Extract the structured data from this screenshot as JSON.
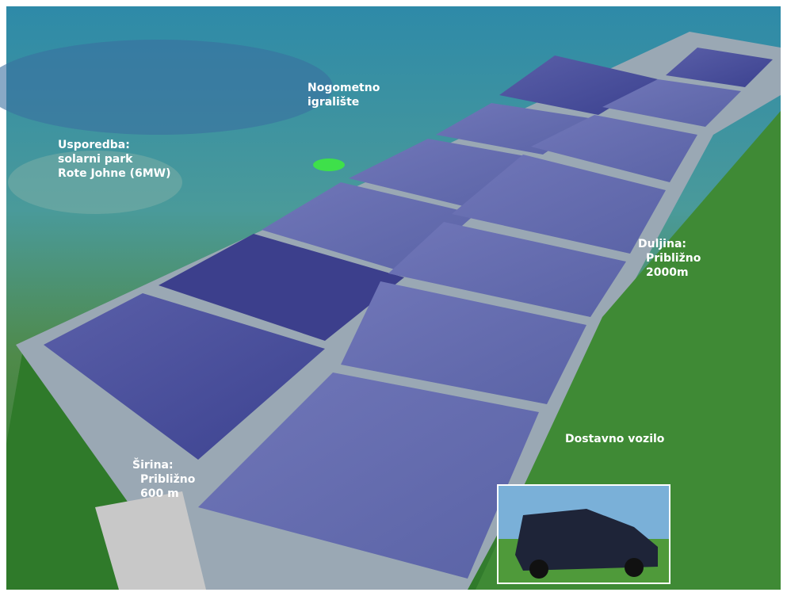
{
  "labels": [
    {
      "name": "football-pitch",
      "lines": [
        "Nogometno",
        "igralište"
      ]
    },
    {
      "name": "comparison",
      "lines": [
        "Usporedba:",
        "solarni park",
        "Rote Johne (6MW)"
      ]
    },
    {
      "name": "length",
      "lines": [
        "Duljina:",
        "Približno",
        "2000m"
      ]
    },
    {
      "name": "vehicle",
      "lines": [
        "Dostavno vozilo"
      ]
    },
    {
      "name": "width",
      "lines": [
        "Širina:",
        "Približno",
        "600 m"
      ]
    }
  ]
}
